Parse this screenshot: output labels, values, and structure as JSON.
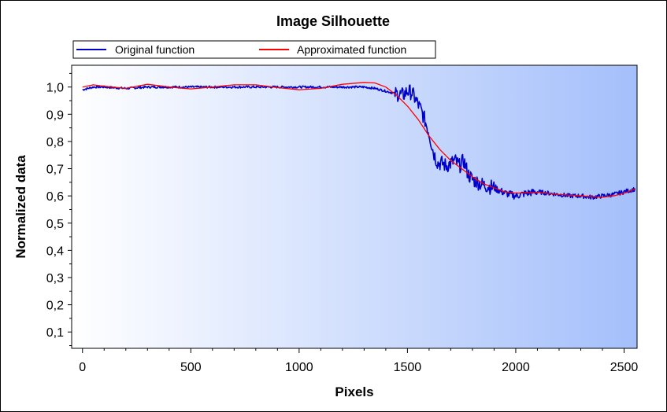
{
  "chart_data": {
    "type": "line",
    "title": "Image Silhouette",
    "xlabel": "Pixels",
    "ylabel": "Normalized data",
    "xlim": [
      -50,
      2560
    ],
    "ylim": [
      0.04,
      1.08
    ],
    "x_ticks": [
      0,
      500,
      1000,
      1500,
      2000,
      2500
    ],
    "x_tick_labels": [
      "0",
      "500",
      "1000",
      "1500",
      "2000",
      "2500"
    ],
    "y_ticks": [
      0.1,
      0.2,
      0.3,
      0.4,
      0.5,
      0.6,
      0.7,
      0.8,
      0.9,
      1.0
    ],
    "y_tick_labels": [
      "0,1",
      "0,2",
      "0,3",
      "0,4",
      "0,5",
      "0,6",
      "0,7",
      "0,8",
      "0,9",
      "1,0"
    ],
    "grid": false,
    "legend_position": "top",
    "background_gradient": [
      "#ffffff",
      "#a4bffb"
    ],
    "series": [
      {
        "name": "Original function",
        "color": "#0000cc",
        "noisy": true,
        "x": [
          0,
          50,
          100,
          200,
          300,
          400,
          500,
          600,
          700,
          800,
          900,
          1000,
          1100,
          1200,
          1300,
          1350,
          1400,
          1450,
          1480,
          1500,
          1520,
          1540,
          1560,
          1580,
          1600,
          1620,
          1640,
          1660,
          1680,
          1700,
          1720,
          1740,
          1760,
          1780,
          1800,
          1850,
          1900,
          1950,
          2000,
          2050,
          2100,
          2150,
          2200,
          2250,
          2300,
          2350,
          2400,
          2450,
          2500,
          2550
        ],
        "y": [
          0.99,
          1.0,
          1.0,
          0.995,
          1.0,
          1.0,
          1.0,
          1.0,
          1.0,
          1.0,
          1.0,
          1.0,
          1.0,
          1.0,
          1.0,
          0.995,
          0.985,
          0.975,
          0.97,
          0.985,
          0.98,
          0.95,
          0.92,
          0.88,
          0.83,
          0.76,
          0.72,
          0.72,
          0.71,
          0.72,
          0.73,
          0.71,
          0.73,
          0.68,
          0.66,
          0.64,
          0.63,
          0.61,
          0.6,
          0.61,
          0.615,
          0.61,
          0.605,
          0.6,
          0.6,
          0.595,
          0.6,
          0.605,
          0.615,
          0.625
        ]
      },
      {
        "name": "Approximated function",
        "color": "#ff0000",
        "noisy": false,
        "x": [
          0,
          50,
          100,
          200,
          300,
          400,
          500,
          600,
          700,
          800,
          900,
          1000,
          1100,
          1200,
          1300,
          1350,
          1400,
          1450,
          1500,
          1550,
          1600,
          1650,
          1700,
          1750,
          1800,
          1850,
          1900,
          1950,
          2000,
          2100,
          2200,
          2300,
          2400,
          2450,
          2500,
          2550
        ],
        "y": [
          1.0,
          1.008,
          1.003,
          0.995,
          1.01,
          1.0,
          0.993,
          1.0,
          1.008,
          1.008,
          0.998,
          0.99,
          0.995,
          1.01,
          1.017,
          1.015,
          1.0,
          0.97,
          0.93,
          0.88,
          0.82,
          0.77,
          0.73,
          0.7,
          0.67,
          0.645,
          0.63,
          0.615,
          0.61,
          0.613,
          0.605,
          0.6,
          0.595,
          0.6,
          0.61,
          0.625
        ]
      }
    ]
  }
}
